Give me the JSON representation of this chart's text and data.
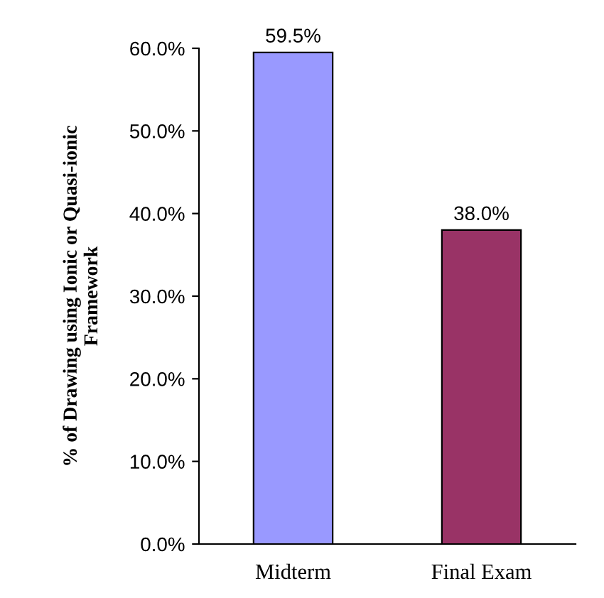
{
  "chart_data": {
    "type": "bar",
    "ylabel": "% of Drawing using Ionic or Quasi-ionic\nFramework",
    "categories": [
      "Midterm",
      "Final Exam"
    ],
    "values": [
      59.5,
      38.0
    ],
    "value_labels": [
      "59.5%",
      "38.0%"
    ],
    "colors": [
      "#9999ff",
      "#993366"
    ],
    "ylim": [
      0,
      60
    ],
    "yticks": [
      {
        "value": 0,
        "label": "0.0%"
      },
      {
        "value": 10,
        "label": "10.0%"
      },
      {
        "value": 20,
        "label": "20.0%"
      },
      {
        "value": 30,
        "label": "30.0%"
      },
      {
        "value": 40,
        "label": "40.0%"
      },
      {
        "value": 50,
        "label": "50.0%"
      },
      {
        "value": 60,
        "label": "60.0%"
      }
    ],
    "grid": false,
    "legend": false
  }
}
